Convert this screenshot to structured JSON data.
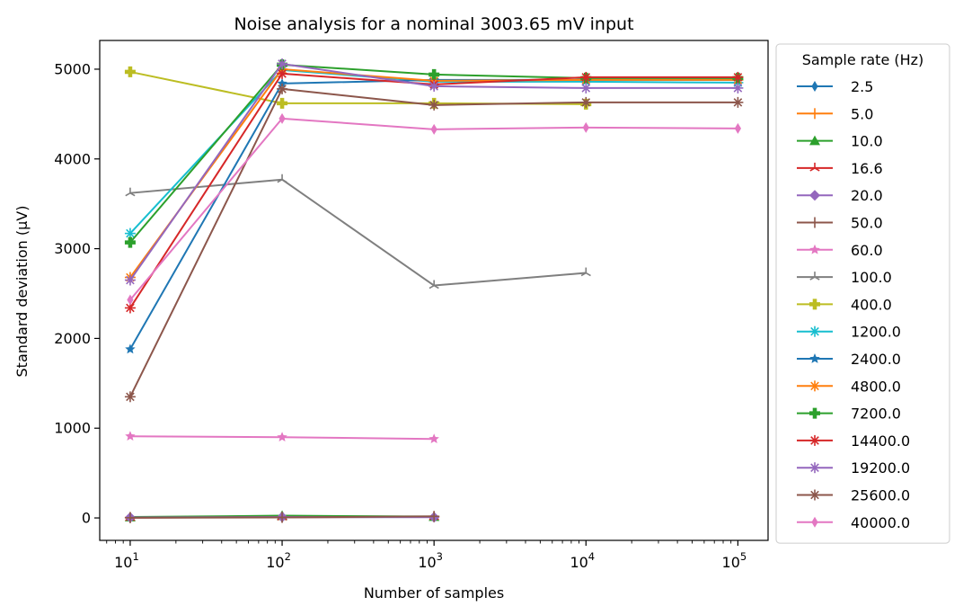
{
  "chart_data": {
    "type": "line",
    "title": "Noise analysis for a nominal 3003.65 mV input",
    "xlabel": "Number of samples",
    "ylabel": "Standard deviation (µV)",
    "xscale": "log",
    "xlim": [
      6.3,
      158000
    ],
    "ylim": [
      -250,
      5320
    ],
    "x_ticks": [
      10,
      100,
      1000,
      10000,
      100000
    ],
    "x_tick_labels": [
      {
        "base": "10",
        "exp": "1"
      },
      {
        "base": "10",
        "exp": "2"
      },
      {
        "base": "10",
        "exp": "3"
      },
      {
        "base": "10",
        "exp": "4"
      },
      {
        "base": "10",
        "exp": "5"
      }
    ],
    "y_ticks": [
      0,
      1000,
      2000,
      3000,
      4000,
      5000
    ],
    "y_tick_labels": [
      "0",
      "1000",
      "2000",
      "3000",
      "4000",
      "5000"
    ],
    "grid": false,
    "legend": {
      "title": "Sample rate (Hz)",
      "placement": "outside-right"
    },
    "series": [
      {
        "name": "2.5",
        "color": "#1f77b4",
        "marker": "thin-diamond",
        "x": [
          10,
          100,
          1000
        ],
        "y": [
          5,
          8,
          10
        ]
      },
      {
        "name": "5.0",
        "color": "#ff7f0e",
        "marker": "plus",
        "x": [
          10,
          100,
          1000
        ],
        "y": [
          5,
          10,
          12
        ]
      },
      {
        "name": "10.0",
        "color": "#2ca02c",
        "marker": "triangle",
        "x": [
          10,
          100,
          1000
        ],
        "y": [
          10,
          25,
          15
        ]
      },
      {
        "name": "16.6",
        "color": "#d62728",
        "marker": "tri-star",
        "x": [
          10,
          100,
          1000
        ],
        "y": [
          3,
          8,
          12
        ]
      },
      {
        "name": "20.0",
        "color": "#9467bd",
        "marker": "diamond",
        "x": [
          10,
          100,
          1000
        ],
        "y": [
          5,
          10,
          8
        ]
      },
      {
        "name": "50.0",
        "color": "#8c564b",
        "marker": "plus",
        "x": [
          10,
          100,
          1000
        ],
        "y": [
          2,
          5,
          18
        ]
      },
      {
        "name": "60.0",
        "color": "#e377c2",
        "marker": "star",
        "x": [
          10,
          100,
          1000
        ],
        "y": [
          910,
          900,
          880
        ]
      },
      {
        "name": "100.0",
        "color": "#7f7f7f",
        "marker": "tri-star",
        "x": [
          10,
          100,
          1000,
          10000
        ],
        "y": [
          3620,
          3770,
          2590,
          2730
        ]
      },
      {
        "name": "400.0",
        "color": "#bcbd22",
        "marker": "plus-filled",
        "x": [
          10,
          100,
          1000,
          10000
        ],
        "y": [
          4970,
          4620,
          4620,
          4610
        ]
      },
      {
        "name": "1200.0",
        "color": "#17becf",
        "marker": "asterisk",
        "x": [
          10,
          100,
          1000,
          10000,
          100000
        ],
        "y": [
          3170,
          4990,
          4860,
          4860,
          4850
        ]
      },
      {
        "name": "2400.0",
        "color": "#1f77b4",
        "marker": "star",
        "x": [
          10,
          100,
          1000,
          10000,
          100000
        ],
        "y": [
          1880,
          4840,
          4880,
          4880,
          4880
        ]
      },
      {
        "name": "4800.0",
        "color": "#ff7f0e",
        "marker": "asterisk",
        "x": [
          10,
          100,
          1000,
          10000,
          100000
        ],
        "y": [
          2680,
          5000,
          4870,
          4880,
          4880
        ]
      },
      {
        "name": "7200.0",
        "color": "#2ca02c",
        "marker": "plus-filled",
        "x": [
          10,
          100,
          1000,
          10000,
          100000
        ],
        "y": [
          3070,
          5050,
          4940,
          4900,
          4900
        ]
      },
      {
        "name": "14400.0",
        "color": "#d62728",
        "marker": "asterisk",
        "x": [
          10,
          100,
          1000,
          10000,
          100000
        ],
        "y": [
          2340,
          4950,
          4830,
          4910,
          4910
        ]
      },
      {
        "name": "19200.0",
        "color": "#9467bd",
        "marker": "asterisk",
        "x": [
          10,
          100,
          1000,
          10000,
          100000
        ],
        "y": [
          2650,
          5060,
          4810,
          4790,
          4790
        ]
      },
      {
        "name": "25600.0",
        "color": "#8c564b",
        "marker": "asterisk",
        "x": [
          10,
          100,
          1000,
          10000,
          100000
        ],
        "y": [
          1350,
          4780,
          4600,
          4630,
          4630
        ]
      },
      {
        "name": "40000.0",
        "color": "#e377c2",
        "marker": "thin-diamond",
        "x": [
          10,
          100,
          1000,
          10000,
          100000
        ],
        "y": [
          2430,
          4450,
          4330,
          4350,
          4340
        ]
      }
    ]
  }
}
